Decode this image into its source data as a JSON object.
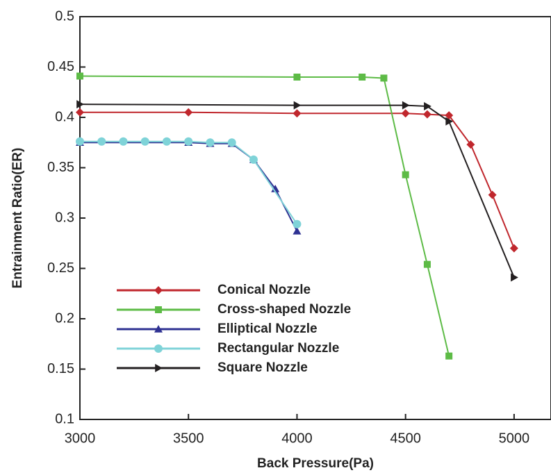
{
  "chart_data": {
    "type": "line",
    "xlabel": "Back Pressure(Pa)",
    "ylabel": "Entrainment Ratio(ER)",
    "xlim": [
      3000,
      5170
    ],
    "ylim": [
      0.1,
      0.5
    ],
    "xticks": [
      3000,
      3500,
      4000,
      4500,
      5000
    ],
    "yticks": [
      0.1,
      0.15,
      0.2,
      0.25,
      0.3,
      0.35,
      0.4,
      0.45,
      0.5
    ],
    "legend": "lower-left",
    "series": [
      {
        "name": "Conical Nozzle",
        "color": "#c0272d",
        "marker": "diamond",
        "x": [
          3000,
          3500,
          4000,
          4500,
          4600,
          4700,
          4800,
          4900,
          5000
        ],
        "values": [
          0.405,
          0.405,
          0.404,
          0.404,
          0.403,
          0.402,
          0.373,
          0.323,
          0.27
        ]
      },
      {
        "name": "Cross-shaped Nozzle",
        "color": "#5dbb46",
        "marker": "square",
        "x": [
          3000,
          4000,
          4300,
          4400,
          4500,
          4600,
          4700
        ],
        "values": [
          0.441,
          0.44,
          0.44,
          0.439,
          0.343,
          0.254,
          0.163
        ]
      },
      {
        "name": "Elliptical Nozzle",
        "color": "#2e3192",
        "marker": "triangle",
        "x": [
          3000,
          3500,
          3600,
          3700,
          3800,
          3900,
          4000
        ],
        "values": [
          0.375,
          0.375,
          0.374,
          0.374,
          0.358,
          0.329,
          0.287
        ]
      },
      {
        "name": "Rectangular Nozzle",
        "color": "#7fd3d8",
        "marker": "circle",
        "x": [
          3000,
          3100,
          3200,
          3300,
          3400,
          3500,
          3600,
          3700,
          3800,
          4000
        ],
        "values": [
          0.376,
          0.376,
          0.376,
          0.376,
          0.376,
          0.376,
          0.375,
          0.375,
          0.358,
          0.294
        ]
      },
      {
        "name": "Square Nozzle",
        "color": "#231f20",
        "marker": "triangle-right",
        "x": [
          3000,
          4000,
          4500,
          4600,
          4700,
          5000
        ],
        "values": [
          0.413,
          0.412,
          0.412,
          0.411,
          0.396,
          0.241
        ]
      }
    ]
  }
}
